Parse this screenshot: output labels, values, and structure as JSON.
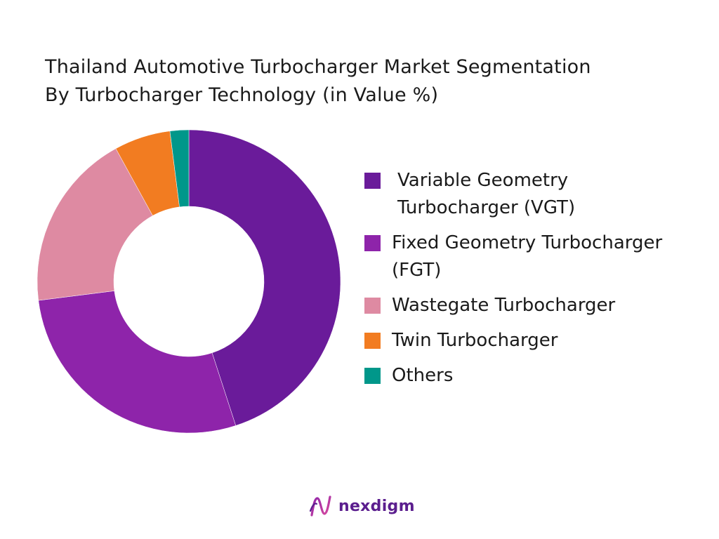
{
  "title_lines": [
    "Thailand Automotive Turbocharger Market Segmentation",
    "By Turbocharger Technology (in Value %)"
  ],
  "chart_data": {
    "type": "pie",
    "donut": true,
    "title": "Thailand Automotive Turbocharger Market Segmentation By Turbocharger Technology (in Value %)",
    "legend_position": "right",
    "categories": [
      "Variable Geometry Turbocharger (VGT)",
      "Fixed Geometry Turbocharger (FGT)",
      "Wastegate Turbocharger",
      "Twin Turbocharger",
      "Others"
    ],
    "values": [
      45,
      28,
      19,
      6,
      2
    ],
    "colors": [
      "#6a1b9a",
      "#8e24aa",
      "#de8aa2",
      "#f27c21",
      "#00978a"
    ]
  },
  "legend": [
    {
      "lines": [
        "Variable Geometry",
        "Turbocharger (VGT)"
      ],
      "color": "#6a1b9a"
    },
    {
      "lines": [
        "Fixed Geometry Turbocharger",
        "(FGT)"
      ],
      "color": "#8e24aa"
    },
    {
      "lines": [
        "Wastegate Turbocharger"
      ],
      "color": "#de8aa2"
    },
    {
      "lines": [
        "Twin Turbocharger"
      ],
      "color": "#f27c21"
    },
    {
      "lines": [
        "Others"
      ],
      "color": "#00978a"
    }
  ],
  "logo": {
    "text": "nexdigm",
    "icon": "nexdigm-logo-icon"
  }
}
